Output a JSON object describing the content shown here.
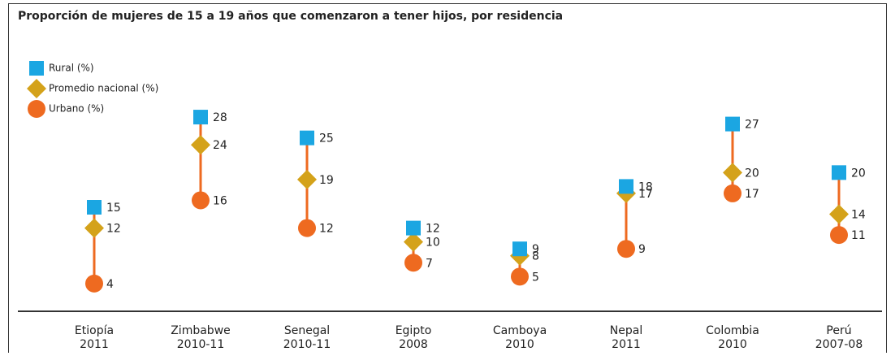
{
  "chart_data": {
    "type": "dot-range",
    "title": "Proporción de mujeres de 15 a 19 años que comenzaron a tener hijos, por residencia",
    "categories": [
      [
        "Etiopía",
        "2011"
      ],
      [
        "Zimbabwe",
        "2010-11"
      ],
      [
        "Senegal",
        "2010-11"
      ],
      [
        "Egipto",
        "2008"
      ],
      [
        "Camboya",
        "2010"
      ],
      [
        "Nepal",
        "2011"
      ],
      [
        "Colombia",
        "2010"
      ],
      [
        "Perú",
        "2007-08"
      ]
    ],
    "series": [
      {
        "name": "Rural (%)",
        "color": "#1ba6e2",
        "marker": "square",
        "values": [
          15,
          28,
          25,
          12,
          9,
          18,
          27,
          20
        ]
      },
      {
        "name": "Promedio nacional (%)",
        "color": "#d4a21a",
        "marker": "diamond",
        "values": [
          12,
          24,
          19,
          10,
          8,
          17,
          20,
          14
        ]
      },
      {
        "name": "Urbano (%)",
        "color": "#ee6a20",
        "marker": "circle",
        "values": [
          4,
          16,
          12,
          7,
          5,
          9,
          17,
          11
        ]
      }
    ],
    "ylim": [
      0,
      30
    ]
  }
}
